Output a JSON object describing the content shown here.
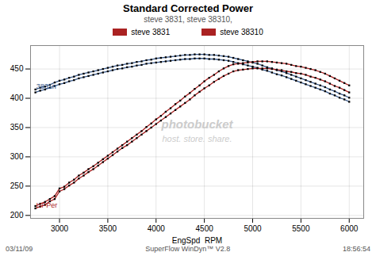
{
  "chart_data": {
    "type": "line",
    "title": "Standard Corrected Power",
    "subtitle": "steve 3831, steve 38310,",
    "xlabel": "EngSpd  RPM",
    "xlim": [
      2700,
      6150
    ],
    "ylim": [
      195,
      490
    ],
    "xticks": [
      3000,
      3500,
      4000,
      4500,
      5000,
      5500,
      6000
    ],
    "yticks": [
      200,
      250,
      300,
      350,
      400,
      450
    ],
    "grid": true,
    "x": [
      2750,
      2800,
      2850,
      2900,
      2950,
      3000,
      3050,
      3100,
      3150,
      3200,
      3250,
      3300,
      3350,
      3400,
      3450,
      3500,
      3550,
      3600,
      3650,
      3700,
      3750,
      3800,
      3850,
      3900,
      3950,
      4000,
      4050,
      4100,
      4150,
      4200,
      4250,
      4300,
      4350,
      4400,
      4450,
      4500,
      4550,
      4600,
      4650,
      4700,
      4750,
      4800,
      4850,
      4900,
      4950,
      5000,
      5050,
      5100,
      5150,
      5200,
      5250,
      5300,
      5350,
      5400,
      5450,
      5500,
      5550,
      5600,
      5650,
      5700,
      5750,
      5800,
      5850,
      5900,
      5950,
      6000
    ],
    "series": [
      {
        "name": "steve 3831",
        "color": "#3a5a8a",
        "marker": "square",
        "values": [
          415,
          418,
          420,
          423,
          427,
          430,
          432,
          435,
          437,
          440,
          442,
          444,
          446,
          448,
          450,
          452,
          454,
          456,
          457,
          459,
          460,
          462,
          463,
          465,
          466,
          468,
          469,
          470,
          471,
          472,
          473,
          474,
          474,
          475,
          475,
          475,
          474,
          474,
          473,
          472,
          471,
          469,
          467,
          465,
          463,
          461,
          459,
          456,
          453,
          451,
          448,
          446,
          443,
          440,
          437,
          434,
          431,
          428,
          425,
          422,
          419,
          415,
          412,
          408,
          405,
          401
        ]
      },
      {
        "name": "steve 38310",
        "color": "#3a5a8a",
        "marker": "square",
        "values": [
          410,
          413,
          415,
          418,
          421,
          424,
          426,
          429,
          431,
          434,
          436,
          438,
          440,
          442,
          444,
          446,
          448,
          450,
          451,
          453,
          454,
          456,
          457,
          459,
          460,
          461,
          462,
          463,
          464,
          465,
          466,
          467,
          467,
          468,
          468,
          468,
          467,
          467,
          466,
          465,
          464,
          462,
          460,
          458,
          456,
          454,
          452,
          449,
          447,
          444,
          441,
          439,
          436,
          433,
          430,
          427,
          424,
          421,
          418,
          415,
          412,
          408,
          405,
          401,
          398,
          394
        ]
      },
      {
        "name": "steve 3831",
        "color": "#aa2222",
        "marker": "square",
        "values": [
          216,
          220,
          223,
          228,
          233,
          246,
          249,
          256,
          261,
          268,
          273,
          279,
          284,
          290,
          296,
          302,
          308,
          314,
          320,
          326,
          332,
          338,
          344,
          351,
          357,
          364,
          370,
          377,
          383,
          390,
          396,
          403,
          409,
          416,
          422,
          429,
          435,
          440,
          446,
          451,
          455,
          458,
          459,
          460,
          461,
          462,
          463,
          463,
          463,
          462,
          461,
          460,
          459,
          457,
          455,
          454,
          452,
          450,
          448,
          445,
          442,
          438,
          434,
          430,
          426,
          422
        ]
      },
      {
        "name": "steve 38310",
        "color": "#aa2222",
        "marker": "square",
        "values": [
          212,
          215,
          218,
          224,
          228,
          241,
          245,
          251,
          256,
          263,
          268,
          274,
          279,
          285,
          291,
          297,
          303,
          309,
          315,
          320,
          326,
          332,
          338,
          344,
          350,
          356,
          362,
          368,
          374,
          380,
          386,
          392,
          398,
          405,
          411,
          417,
          422,
          428,
          433,
          438,
          442,
          446,
          448,
          449,
          450,
          451,
          451,
          451,
          451,
          450,
          449,
          448,
          446,
          445,
          443,
          442,
          440,
          437,
          435,
          432,
          429,
          425,
          421,
          418,
          414,
          410
        ]
      }
    ],
    "annotations": [
      {
        "text": "3831n",
        "x": 2760,
        "y": 416,
        "color": "#3a5a8a"
      },
      {
        "text": "HPPer",
        "x": 2760,
        "y": 213,
        "color": "#aa2222"
      }
    ],
    "watermark": [
      "photobucket",
      "host. store. share."
    ],
    "footer": [
      "03/11/09",
      "SuperFlow WinDyn™ V2.8",
      "18:56:54"
    ]
  }
}
